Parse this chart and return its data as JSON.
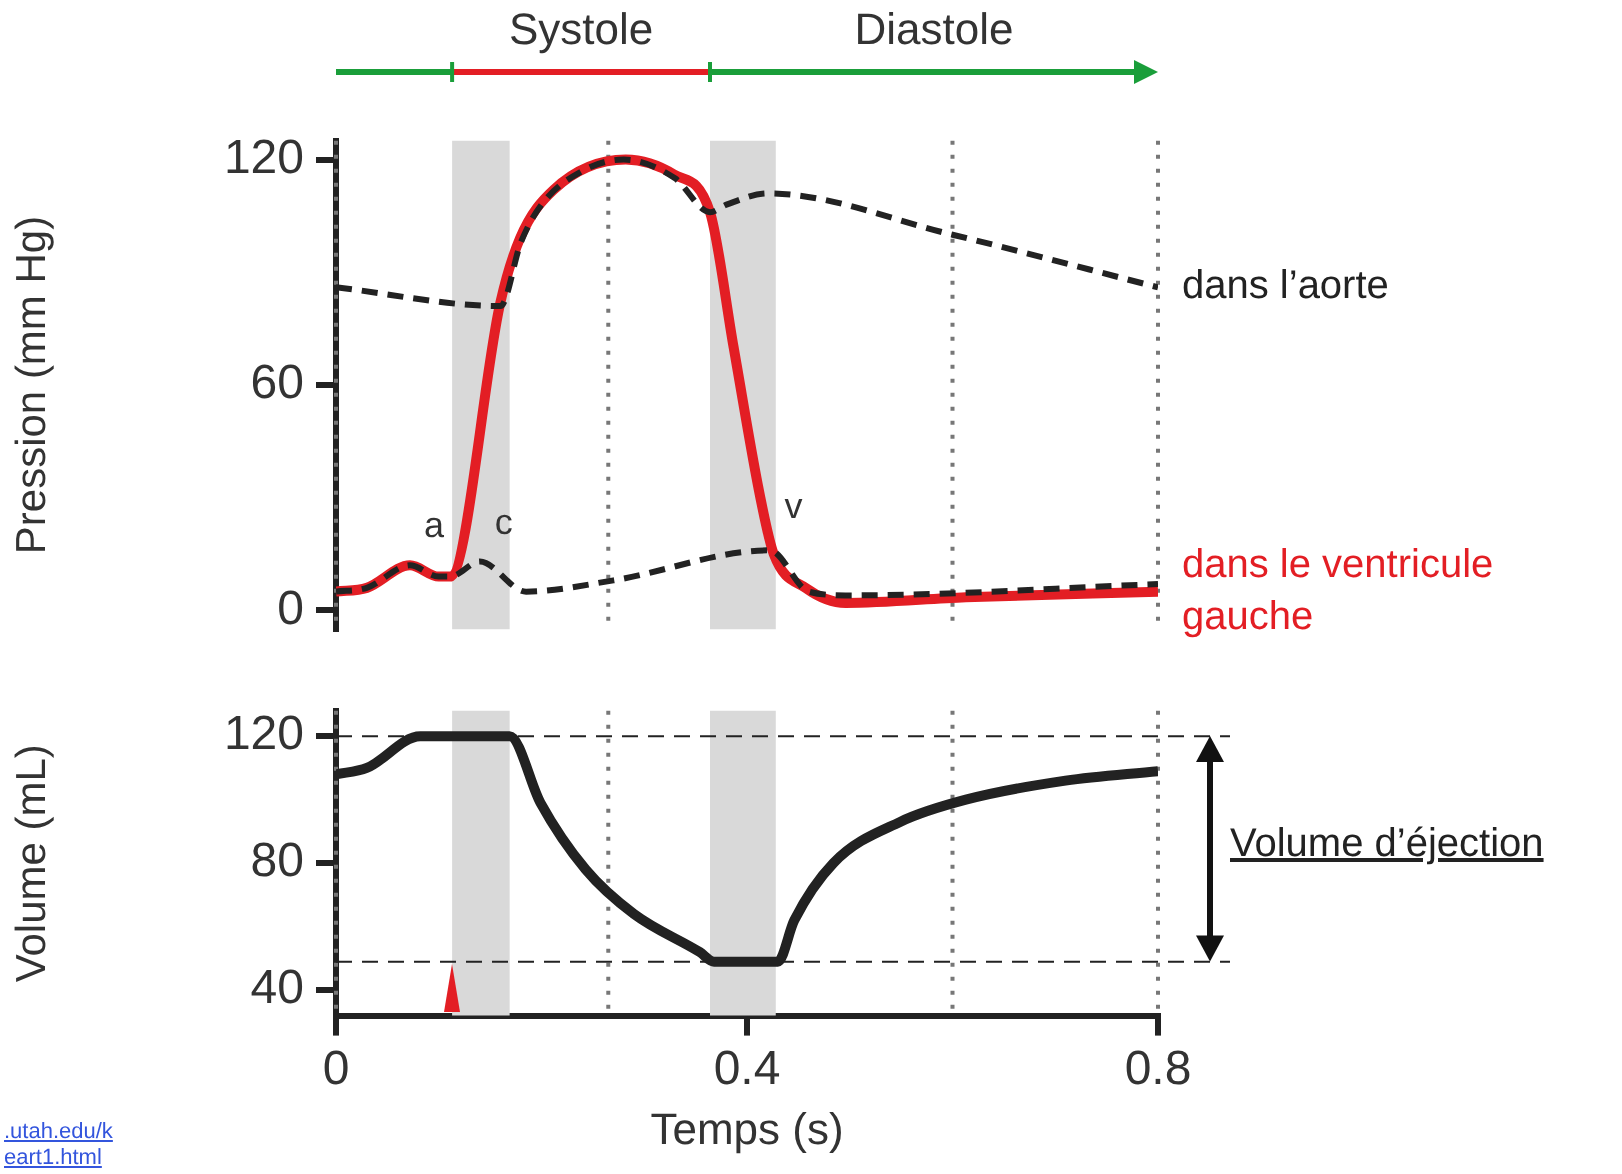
{
  "chart_data": [
    {
      "type": "line",
      "ylabel": "Pression (mm Hg)",
      "xlim": [
        0,
        0.8
      ],
      "ylim": [
        -5,
        125
      ],
      "yticks": [
        0,
        60,
        120
      ],
      "tick_labels": "y",
      "legend": false,
      "marker": "none",
      "annotations": [
        "Systole",
        "Diastole",
        {
          "text": "a",
          "x": 0.072,
          "y": 12
        },
        {
          "text": "c",
          "x": 0.14,
          "y": 13
        },
        {
          "text": "v",
          "x": 0.422,
          "y": 17
        }
      ],
      "bands": [
        {
          "axis": "x",
          "from": 0.113,
          "to": 0.169,
          "color": "#d9d9d9"
        },
        {
          "axis": "x",
          "from": 0.364,
          "to": 0.428,
          "color": "#d9d9d9"
        }
      ],
      "ref_lines": [
        {
          "axis": "x",
          "value": 0,
          "line_style": "dotted",
          "color": "#777777"
        },
        {
          "axis": "x",
          "value": 0.265,
          "line_style": "dotted",
          "color": "#777777"
        },
        {
          "axis": "x",
          "value": 0.6,
          "line_style": "dotted",
          "color": "#777777"
        },
        {
          "axis": "x",
          "value": 0.8,
          "line_style": "dotted",
          "color": "#777777"
        }
      ],
      "series": [
        {
          "name": "dans le ventricule gauche",
          "color": "#e31e24",
          "line_style": "solid",
          "x": [
            0,
            0.03,
            0.072,
            0.1,
            0.111,
            0.16,
            0.179,
            0.212,
            0.282,
            0.329,
            0.364,
            0.387,
            0.413,
            0.426,
            0.457,
            0.496,
            0.613,
            0.8
          ],
          "values": [
            5,
            6,
            12,
            9,
            9,
            82,
            99,
            112,
            120,
            116,
            106,
            70,
            30,
            15,
            6,
            2,
            3.5,
            5
          ]
        },
        {
          "name": "dans l’aorte",
          "color": "#222222",
          "line_style": "dashed",
          "x": [
            0,
            0.16,
            0.18,
            0.2,
            0.24,
            0.28,
            0.33,
            0.364,
            0.38,
            0.42,
            0.6,
            0.8
          ],
          "values": [
            86,
            81,
            98,
            108,
            117,
            120,
            115,
            106,
            108,
            111,
            100,
            86
          ]
        },
        {
          "color": "#222222",
          "line_style": "dashed",
          "x": [
            0,
            0.03,
            0.072,
            0.1,
            0.111,
            0.14,
            0.185,
            0.27,
            0.422,
            0.46,
            0.5,
            0.8
          ],
          "values": [
            5,
            6,
            12,
            9,
            9,
            13,
            5,
            8,
            16,
            5,
            4,
            7
          ]
        }
      ]
    },
    {
      "type": "line",
      "xlabel": "Temps (s)",
      "ylabel": "Volume (mL)",
      "xlim": [
        0,
        0.8
      ],
      "xticks": [
        0,
        0.4,
        0.8
      ],
      "ylim": [
        32,
        128
      ],
      "yticks": [
        40,
        80,
        120
      ],
      "legend": false,
      "marker": "none",
      "annotations": [
        "Volume d’éjection",
        ".utah.edu/k",
        "eart1.html"
      ],
      "bands": [
        {
          "axis": "x",
          "from": 0.113,
          "to": 0.169,
          "color": "#d9d9d9"
        },
        {
          "axis": "x",
          "from": 0.364,
          "to": 0.428,
          "color": "#d9d9d9"
        }
      ],
      "ref_lines": [
        {
          "axis": "x",
          "value": 0,
          "line_style": "dotted",
          "color": "#777777"
        },
        {
          "axis": "x",
          "value": 0.265,
          "line_style": "dotted",
          "color": "#777777"
        },
        {
          "axis": "x",
          "value": 0.6,
          "line_style": "dotted",
          "color": "#777777"
        },
        {
          "axis": "x",
          "value": 0.8,
          "line_style": "dotted",
          "color": "#777777"
        },
        {
          "axis": "y",
          "value": 120,
          "line_style": "dashed",
          "color": "#222222"
        },
        {
          "axis": "y",
          "value": 49,
          "line_style": "dashed",
          "color": "#222222"
        }
      ],
      "series": [
        {
          "color": "#222222",
          "line_style": "solid",
          "x": [
            0,
            0.03,
            0.082,
            0.169,
            0.199,
            0.243,
            0.29,
            0.354,
            0.368,
            0.43,
            0.446,
            0.484,
            0.549,
            0.613,
            0.71,
            0.8
          ],
          "values": [
            108,
            110,
            120,
            120,
            99,
            78,
            64,
            52,
            49,
            49,
            62,
            80,
            93,
            100,
            106,
            109
          ]
        }
      ]
    }
  ]
}
